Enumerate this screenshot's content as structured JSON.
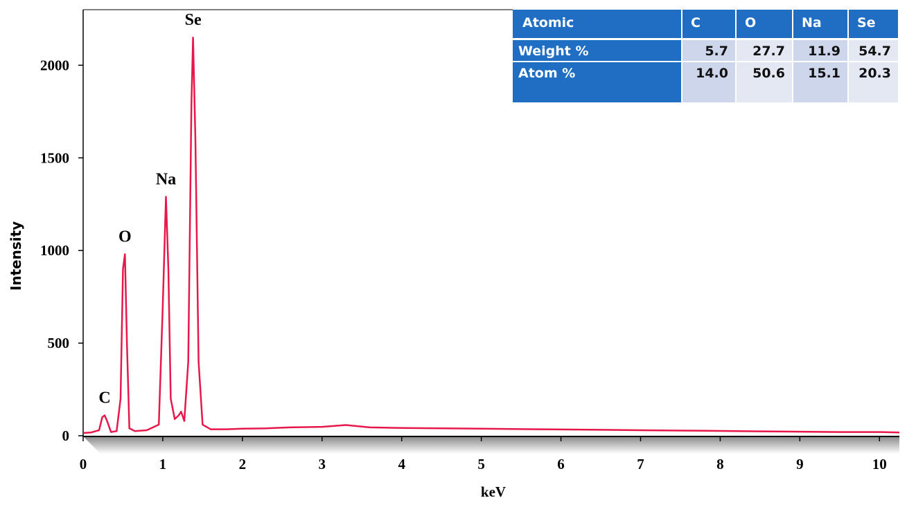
{
  "chart_data": {
    "type": "line",
    "x": [
      0,
      0.1,
      0.2,
      0.24,
      0.27,
      0.3,
      0.35,
      0.42,
      0.47,
      0.5,
      0.525,
      0.55,
      0.58,
      0.65,
      0.8,
      0.95,
      1.0,
      1.04,
      1.07,
      1.1,
      1.15,
      1.2,
      1.23,
      1.27,
      1.32,
      1.36,
      1.38,
      1.41,
      1.45,
      1.5,
      1.6,
      1.8,
      2.0,
      2.3,
      2.6,
      3.0,
      3.3,
      3.6,
      4.0,
      4.5,
      5.0,
      5.5,
      6.0,
      6.5,
      7.0,
      7.5,
      8.0,
      8.5,
      9.0,
      9.5,
      10.0,
      10.25
    ],
    "values": [
      15,
      18,
      30,
      100,
      110,
      80,
      20,
      25,
      200,
      900,
      980,
      500,
      40,
      25,
      30,
      60,
      700,
      1290,
      900,
      200,
      90,
      110,
      130,
      80,
      400,
      1800,
      2150,
      1600,
      400,
      60,
      35,
      35,
      38,
      40,
      45,
      48,
      58,
      45,
      42,
      40,
      38,
      36,
      34,
      32,
      30,
      28,
      26,
      24,
      22,
      20,
      20,
      18
    ],
    "color": "#e8174a",
    "xlabel": "keV",
    "ylabel": "Intensity",
    "xlim": [
      0,
      10.25
    ],
    "ylim": [
      0,
      2300
    ],
    "xticks": [
      0,
      1,
      2,
      3,
      4,
      5,
      6,
      7,
      8,
      9,
      10
    ],
    "yticks": [
      0,
      500,
      1000,
      1500,
      2000
    ],
    "annotations": [
      {
        "text": "C",
        "x": 0.27,
        "y": 110
      },
      {
        "text": "O",
        "x": 0.525,
        "y": 980
      },
      {
        "text": "Na",
        "x": 1.04,
        "y": 1290
      },
      {
        "text": "Se",
        "x": 1.38,
        "y": 2150
      }
    ]
  },
  "table": {
    "header": [
      "Atomic",
      "C",
      "O",
      "Na",
      "Se"
    ],
    "rows": [
      [
        "Weight %",
        "5.7",
        "27.7",
        "11.9",
        "54.7"
      ],
      [
        "Atom %",
        "14.0",
        "50.6",
        "15.1",
        "20.3"
      ]
    ]
  }
}
